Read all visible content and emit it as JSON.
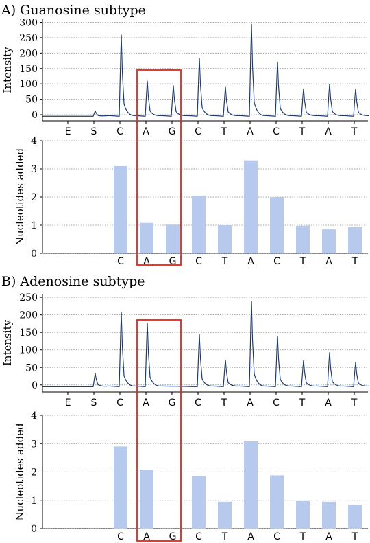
{
  "chart_data": [
    {
      "panel": "A",
      "title": "A) Guanosine subtype",
      "charts": [
        {
          "type": "line",
          "ylabel": "Intensity",
          "ylim": [
            -20,
            310
          ],
          "yticks": [
            0,
            50,
            100,
            150,
            200,
            250,
            300
          ],
          "categories": [
            "E",
            "S",
            "C",
            "A",
            "G",
            "C",
            "T",
            "A",
            "C",
            "T",
            "A",
            "T"
          ],
          "baseline": -5,
          "peak_heights": [
            0,
            12,
            260,
            110,
            95,
            185,
            90,
            295,
            172,
            85,
            100,
            85
          ],
          "grid": "horizontal dotted",
          "color": "#1f3b6e"
        },
        {
          "type": "bar",
          "ylabel": "Nucleotides added",
          "ylim": [
            0,
            4
          ],
          "yticks": [
            0,
            1,
            2,
            3,
            4
          ],
          "categories": [
            "C",
            "A",
            "G",
            "C",
            "T",
            "A",
            "C",
            "T",
            "A",
            "T"
          ],
          "values": [
            3.1,
            1.08,
            1.02,
            2.05,
            1.0,
            3.3,
            2.0,
            0.98,
            0.85,
            0.93
          ],
          "grid": "horizontal dotted",
          "color": "#b8c9ee"
        }
      ],
      "highlight": {
        "categories": [
          "A",
          "G"
        ],
        "color": "#e03c31"
      }
    },
    {
      "panel": "B",
      "title": "B) Adenosine subtype",
      "charts": [
        {
          "type": "line",
          "ylabel": "Intensity",
          "ylim": [
            -20,
            260
          ],
          "yticks": [
            0,
            50,
            100,
            150,
            200,
            250
          ],
          "categories": [
            "E",
            "S",
            "C",
            "A",
            "G",
            "C",
            "T",
            "A",
            "C",
            "T",
            "A",
            "T"
          ],
          "baseline": -5,
          "peak_heights": [
            0,
            33,
            208,
            178,
            0,
            145,
            72,
            240,
            140,
            70,
            93,
            65
          ],
          "grid": "horizontal dotted",
          "color": "#1f3b6e"
        },
        {
          "type": "bar",
          "ylabel": "Nucleotides added",
          "ylim": [
            0,
            4
          ],
          "yticks": [
            0,
            1,
            2,
            3,
            4
          ],
          "categories": [
            "C",
            "A",
            "G",
            "C",
            "T",
            "A",
            "C",
            "T",
            "A",
            "T"
          ],
          "values": [
            2.9,
            2.08,
            0,
            1.85,
            0.95,
            3.08,
            1.88,
            0.97,
            0.95,
            0.85
          ],
          "grid": "horizontal dotted",
          "color": "#b8c9ee"
        }
      ],
      "highlight": {
        "categories": [
          "A",
          "G"
        ],
        "color": "#e03c31"
      }
    }
  ]
}
